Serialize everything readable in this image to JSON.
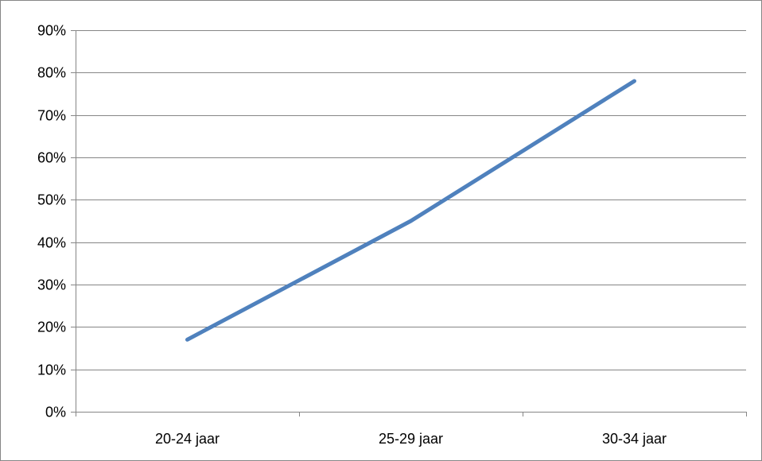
{
  "chart_data": {
    "type": "line",
    "title": "",
    "xlabel": "",
    "ylabel": "",
    "categories": [
      "20-24 jaar",
      "25-29 jaar",
      "30-34 jaar"
    ],
    "series": [
      {
        "values": [
          17,
          45,
          78
        ],
        "color": "#4F81BD"
      }
    ],
    "ylim": [
      0,
      90
    ],
    "yticks": [
      0,
      10,
      20,
      30,
      40,
      50,
      60,
      70,
      80,
      90
    ],
    "ytick_labels": [
      "0%",
      "10%",
      "20%",
      "30%",
      "40%",
      "50%",
      "60%",
      "70%",
      "80%",
      "90%"
    ],
    "grid": true,
    "legend": "none",
    "gridline_color": "#868686"
  }
}
